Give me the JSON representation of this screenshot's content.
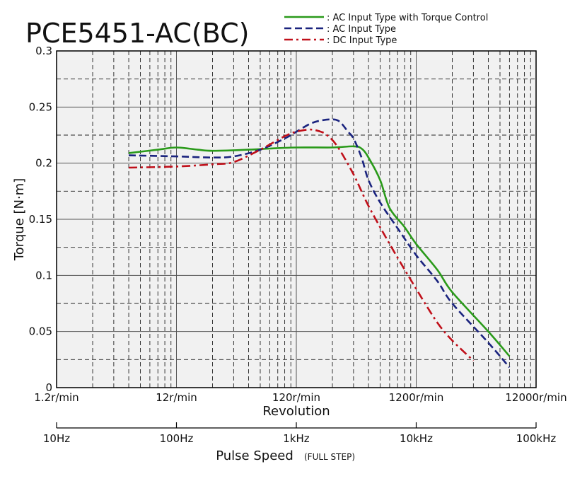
{
  "chart_data": {
    "type": "line",
    "title": "PCE5451-AC(BC)",
    "ylabel": "Torque [N·m]",
    "xlabel_top": "Revolution",
    "xlabel_bottom": "Pulse Speed",
    "xlabel_bottom_note": "(FULL STEP)",
    "x_scale": "log",
    "xlim": [
      10,
      100000
    ],
    "ylim": [
      0,
      0.3
    ],
    "grid": true,
    "legend_position": "top-right",
    "y_ticks": [
      "0",
      "0.05",
      "0.1",
      "0.15",
      "0.2",
      "0.25",
      "0.3"
    ],
    "revolution_ticks": [
      "1.2r/min",
      "12r/min",
      "120r/min",
      "1200r/min",
      "12000r/min"
    ],
    "pulse_ticks": [
      "10Hz",
      "100Hz",
      "1kHz",
      "10kHz",
      "100kHz"
    ],
    "series": [
      {
        "name": "AC Input Type with Torque Control",
        "color": "#2a9a1a",
        "style": "solid",
        "x": [
          40,
          70,
          100,
          150,
          200,
          400,
          600,
          1000,
          2000,
          3000,
          3500,
          4000,
          5000,
          6000,
          8000,
          10000,
          15000,
          20000,
          40000,
          60000
        ],
        "y": [
          0.209,
          0.212,
          0.214,
          0.212,
          0.211,
          0.212,
          0.213,
          0.214,
          0.214,
          0.215,
          0.213,
          0.205,
          0.185,
          0.16,
          0.143,
          0.128,
          0.105,
          0.085,
          0.05,
          0.028
        ]
      },
      {
        "name": "AC Input Type",
        "color": "#1a237e",
        "style": "dashed",
        "x": [
          40,
          100,
          200,
          300,
          500,
          800,
          1000,
          1300,
          1600,
          2000,
          2300,
          2700,
          3000,
          3500,
          4000,
          5000,
          7000,
          10000,
          15000,
          20000,
          40000,
          60000
        ],
        "y": [
          0.207,
          0.206,
          0.205,
          0.206,
          0.212,
          0.222,
          0.228,
          0.235,
          0.238,
          0.239,
          0.237,
          0.228,
          0.222,
          0.205,
          0.185,
          0.165,
          0.142,
          0.118,
          0.095,
          0.075,
          0.04,
          0.018
        ]
      },
      {
        "name": "DC Input Type",
        "color": "#c0101a",
        "style": "dashdot",
        "x": [
          40,
          100,
          200,
          300,
          500,
          800,
          1000,
          1300,
          1600,
          1800,
          2200,
          3000,
          4000,
          6000,
          10000,
          15000,
          20000,
          30000
        ],
        "y": [
          0.196,
          0.197,
          0.199,
          0.201,
          0.212,
          0.224,
          0.228,
          0.23,
          0.228,
          0.225,
          0.215,
          0.19,
          0.162,
          0.128,
          0.088,
          0.058,
          0.042,
          0.024
        ]
      }
    ]
  }
}
